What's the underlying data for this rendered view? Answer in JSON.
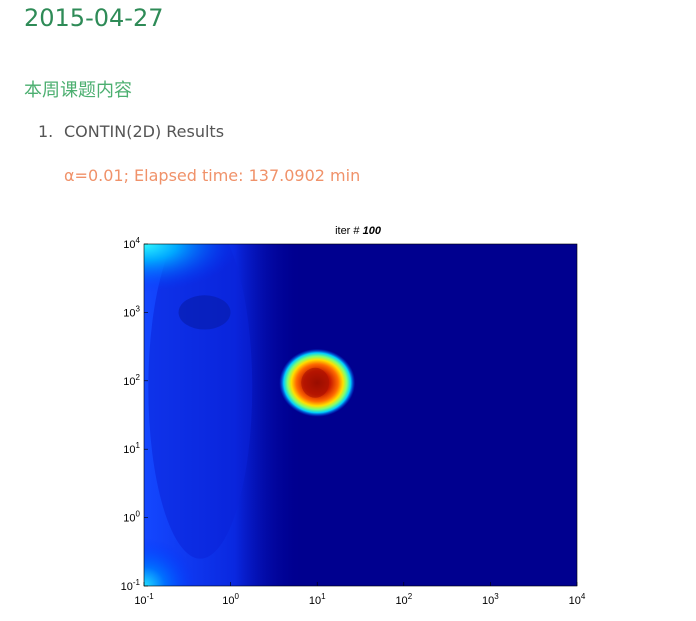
{
  "header": {
    "date": "2015-04-27"
  },
  "section": {
    "title": "本周课题内容"
  },
  "list": {
    "items": [
      {
        "number": "1.",
        "label": "CONTIN(2D) Results"
      }
    ]
  },
  "subtitle": "α=0.01; Elapsed time: 137.0902 min",
  "chart_data": {
    "type": "heatmap",
    "title_prefix": "iter # ",
    "title_value": "100",
    "xscale": "log",
    "yscale": "log",
    "xlim": [
      0.1,
      10000
    ],
    "ylim": [
      0.1,
      10000
    ],
    "x_ticks": [
      {
        "base": "10",
        "exp": "-1"
      },
      {
        "base": "10",
        "exp": "0"
      },
      {
        "base": "10",
        "exp": "1"
      },
      {
        "base": "10",
        "exp": "2"
      },
      {
        "base": "10",
        "exp": "3"
      },
      {
        "base": "10",
        "exp": "4"
      }
    ],
    "y_ticks": [
      {
        "base": "10",
        "exp": "-1"
      },
      {
        "base": "10",
        "exp": "0"
      },
      {
        "base": "10",
        "exp": "1"
      },
      {
        "base": "10",
        "exp": "2"
      },
      {
        "base": "10",
        "exp": "3"
      },
      {
        "base": "10",
        "exp": "4"
      }
    ],
    "peak": {
      "x": 10,
      "y": 100
    },
    "colormap": "jet",
    "colors": {
      "background": "#00008f",
      "peak_core": "#b01000",
      "edge": "#1a4cff",
      "corner": "#2ff0ff"
    }
  }
}
